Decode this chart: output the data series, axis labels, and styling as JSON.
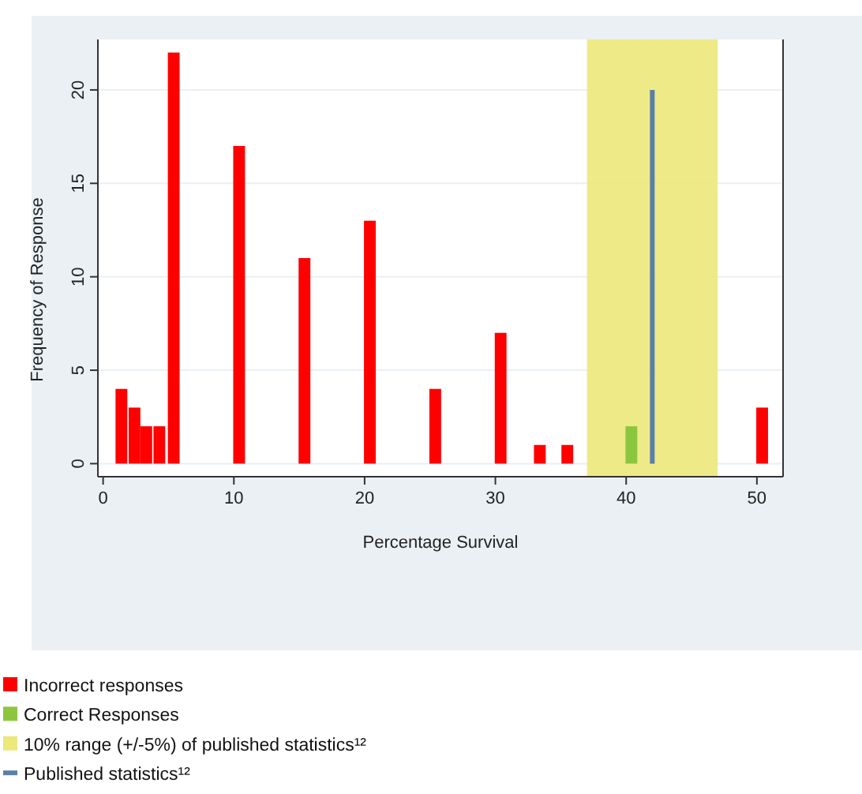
{
  "chart_data": {
    "type": "bar",
    "xlabel": "Percentage Survival",
    "ylabel": "Frequency of Response",
    "xlim": [
      -0.4,
      52
    ],
    "xticks": [
      0,
      10,
      20,
      30,
      40,
      50
    ],
    "ylim": [
      -0.7,
      22.7
    ],
    "yticks": [
      0,
      5,
      10,
      15,
      20
    ],
    "grid": "y",
    "legend": "bottom left",
    "series": [
      {
        "name": "Incorrect responses",
        "color": "#ff0000",
        "x": [
          1.4,
          2.4,
          3.3,
          4.3,
          5.4,
          10.4,
          15.4,
          20.4,
          25.4,
          30.4,
          33.4,
          35.5,
          50.4
        ],
        "values": [
          4,
          3,
          2,
          2,
          22,
          17,
          11,
          13,
          4,
          7,
          1,
          1,
          3
        ]
      },
      {
        "name": "Correct Responses",
        "color": "#8cc63f",
        "x": [
          40.4
        ],
        "values": [
          2
        ]
      }
    ],
    "bands": [
      {
        "axis": "x",
        "from": 37,
        "to": 47,
        "label": "10% range (+/-5%) of published statistics¹²",
        "color": "#ece87a"
      }
    ],
    "ref_lines": [
      {
        "axis": "x",
        "value": 42,
        "label": "Published statistics¹²",
        "color": "#5a7fa8"
      }
    ]
  }
}
